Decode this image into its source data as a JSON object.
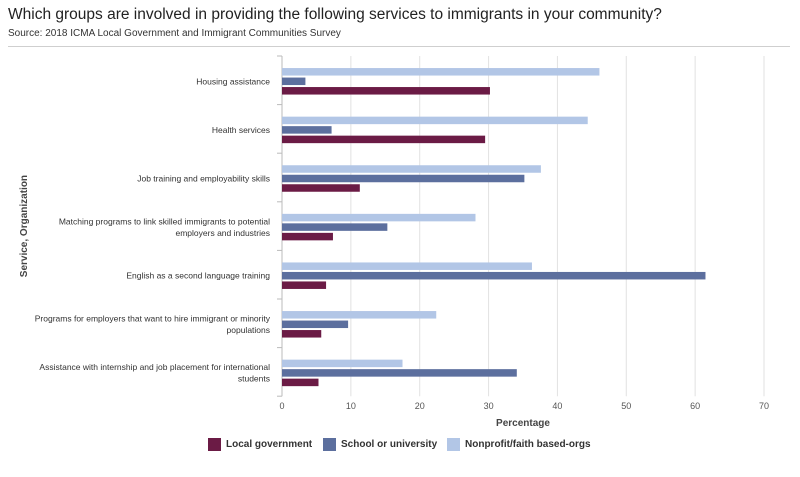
{
  "title": "Which groups are involved in providing the following services to immigrants in your community?",
  "subtitle": "Source: 2018 ICMA Local Government and Immigrant Communities Survey",
  "colors": {
    "local_government": "#6b1b45",
    "school_or_university": "#5c6f9e",
    "nonprofit": "#b2c6e6",
    "grid": "#e2e2e2",
    "axis": "#bbbbbb"
  },
  "chart_data": {
    "type": "bar",
    "orientation": "horizontal",
    "xlabel": "Percentage",
    "ylabel": "Service, Organization",
    "xlim": [
      0,
      70
    ],
    "xticks": [
      0,
      10,
      20,
      30,
      40,
      50,
      60,
      70
    ],
    "grid": true,
    "legend_position": "bottom",
    "categories": [
      [
        "Housing assistance"
      ],
      [
        "Health services"
      ],
      [
        "Job training and employability skills"
      ],
      [
        "Matching programs to link skilled immigrants to potential",
        "employers and industries"
      ],
      [
        "English as a second language training"
      ],
      [
        "Programs for employers that want to hire immigrant or minority",
        "populations"
      ],
      [
        "Assistance with internship and job placement for international",
        "students"
      ]
    ],
    "series": [
      {
        "name": "Nonprofit/faith based-orgs",
        "color_key": "nonprofit",
        "values": [
          46.1,
          44.4,
          37.6,
          28.1,
          36.3,
          22.4,
          17.5
        ]
      },
      {
        "name": "School or university",
        "color_key": "school_or_university",
        "values": [
          3.4,
          7.2,
          35.2,
          15.3,
          61.5,
          9.6,
          34.1
        ]
      },
      {
        "name": "Local government",
        "color_key": "local_government",
        "values": [
          30.2,
          29.5,
          11.3,
          7.4,
          6.4,
          5.7,
          5.3
        ]
      }
    ],
    "legend": [
      {
        "label": "Local government",
        "color_key": "local_government"
      },
      {
        "label": "School or university",
        "color_key": "school_or_university"
      },
      {
        "label": "Nonprofit/faith based-orgs",
        "color_key": "nonprofit"
      }
    ]
  }
}
